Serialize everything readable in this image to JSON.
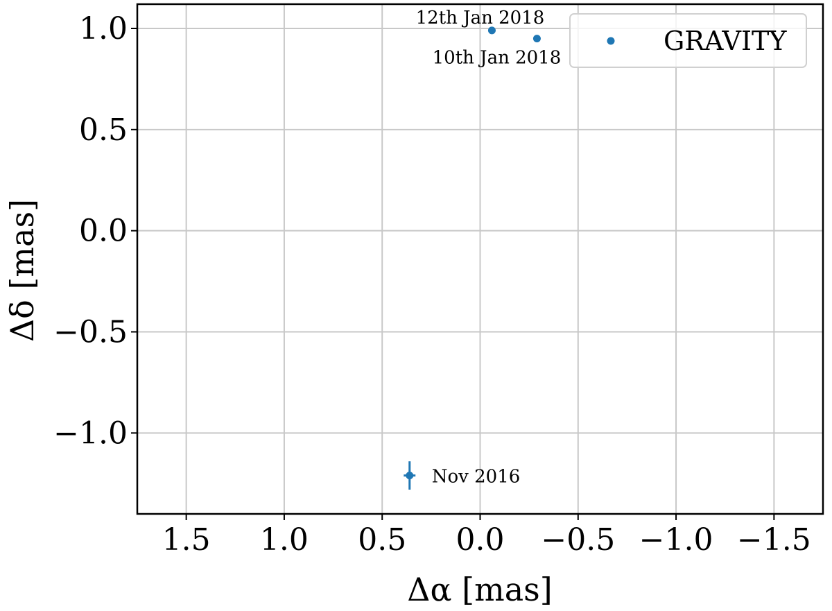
{
  "chart_data": {
    "type": "scatter",
    "xlabel": "Δα [mas]",
    "ylabel": "Δδ [mas]",
    "xlim": [
      1.75,
      -1.75
    ],
    "ylim": [
      -1.4,
      1.12
    ],
    "x_ticks": [
      1.5,
      1.0,
      0.5,
      0.0,
      -0.5,
      -1.0,
      -1.5
    ],
    "x_tick_labels": [
      "1.5",
      "1.0",
      "0.5",
      "0.0",
      "−0.5",
      "−1.0",
      "−1.5"
    ],
    "y_ticks": [
      1.0,
      0.5,
      0.0,
      -0.5,
      -1.0
    ],
    "y_tick_labels": [
      "1.0",
      "0.5",
      "0.0",
      "−0.5",
      "−1.0"
    ],
    "grid": true,
    "legend": {
      "placement": "top-right",
      "entries": [
        "GRAVITY"
      ]
    },
    "series": [
      {
        "name": "GRAVITY",
        "color": "#1f77b4",
        "points": [
          {
            "x": -0.06,
            "y": 0.99,
            "label": "12th Jan 2018"
          },
          {
            "x": -0.29,
            "y": 0.95,
            "label": "10th Jan 2018"
          },
          {
            "x": 0.36,
            "y": -1.21,
            "x_err": 0.03,
            "y_err": 0.07,
            "label": "Nov 2016"
          }
        ]
      }
    ]
  }
}
